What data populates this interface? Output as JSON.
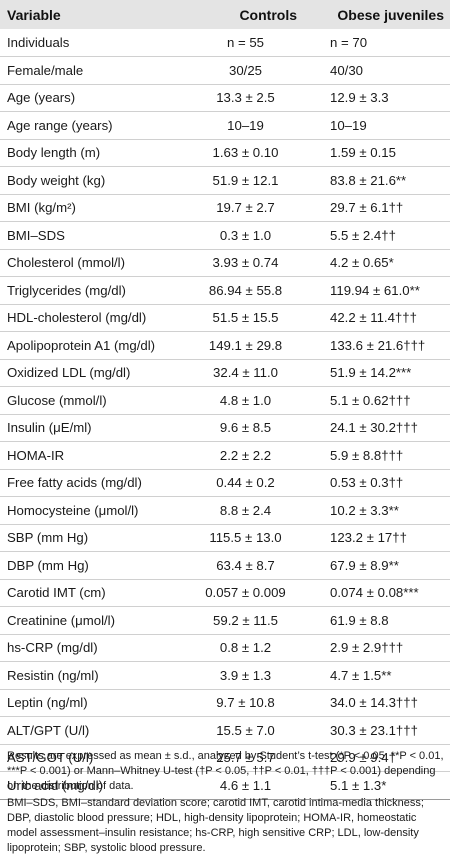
{
  "table": {
    "headers": {
      "variable": "Variable",
      "controls": "Controls",
      "obese": "Obese juveniles"
    },
    "rows": [
      {
        "variable": "Individuals",
        "controls": "n = 55",
        "obese": "n = 70"
      },
      {
        "variable": "Female/male",
        "controls": "30/25",
        "obese": "40/30"
      },
      {
        "variable": "Age (years)",
        "controls": "13.3 ± 2.5",
        "obese": "12.9 ± 3.3"
      },
      {
        "variable": "Age range (years)",
        "controls": "10–19",
        "obese": "10–19"
      },
      {
        "variable": "Body length (m)",
        "controls": "1.63 ± 0.10",
        "obese": "1.59 ± 0.15"
      },
      {
        "variable": "Body weight (kg)",
        "controls": "51.9 ± 12.1",
        "obese": "83.8 ± 21.6**"
      },
      {
        "variable": "BMI (kg/m²)",
        "controls": "19.7 ± 2.7",
        "obese": "29.7 ± 6.1††"
      },
      {
        "variable": "BMI–SDS",
        "controls": "0.3 ± 1.0",
        "obese": "5.5 ± 2.4††"
      },
      {
        "variable": "Cholesterol (mmol/l)",
        "controls": "3.93 ± 0.74",
        "obese": "4.2 ± 0.65*"
      },
      {
        "variable": "Triglycerides (mg/dl)",
        "controls": "86.94 ± 55.8",
        "obese": "119.94 ± 61.0**"
      },
      {
        "variable": "HDL-cholesterol (mg/dl)",
        "controls": "51.5 ± 15.5",
        "obese": "42.2 ± 11.4†††"
      },
      {
        "variable": "Apolipoprotein A1 (mg/dl)",
        "controls": "149.1 ± 29.8",
        "obese": "133.6 ± 21.6†††"
      },
      {
        "variable": "Oxidized LDL (mg/dl)",
        "controls": "32.4 ± 11.0",
        "obese": "51.9 ± 14.2***"
      },
      {
        "variable": "Glucose (mmol/l)",
        "controls": "4.8 ± 1.0",
        "obese": "5.1 ± 0.62†††"
      },
      {
        "variable": "Insulin (μE/ml)",
        "controls": "9.6 ± 8.5",
        "obese": "24.1 ± 30.2†††"
      },
      {
        "variable": "HOMA-IR",
        "controls": "2.2 ± 2.2",
        "obese": "5.9 ± 8.8†††"
      },
      {
        "variable": "Free fatty acids (mg/dl)",
        "controls": "0.44 ± 0.2",
        "obese": "0.53 ± 0.3††"
      },
      {
        "variable": "Homocysteine (μmol/l)",
        "controls": "8.8 ± 2.4",
        "obese": "10.2 ± 3.3**"
      },
      {
        "variable": "SBP (mm Hg)",
        "controls": "115.5 ± 13.0",
        "obese": "123.2 ± 17††"
      },
      {
        "variable": "DBP (mm Hg)",
        "controls": "63.4 ± 8.7",
        "obese": "67.9 ± 8.9**"
      },
      {
        "variable": "Carotid IMT (cm)",
        "controls": "0.057 ± 0.009",
        "obese": "0.074 ± 0.08***"
      },
      {
        "variable": "Creatinine (μmol/l)",
        "controls": "59.2 ± 11.5",
        "obese": "61.9 ± 8.8"
      },
      {
        "variable": "hs-CRP (mg/dl)",
        "controls": "0.8 ± 1.2",
        "obese": "2.9 ± 2.9†††"
      },
      {
        "variable": "Resistin (ng/ml)",
        "controls": "3.9 ± 1.3",
        "obese": "4.7 ± 1.5**"
      },
      {
        "variable": "Leptin (ng/ml)",
        "controls": "9.7 ± 10.8",
        "obese": "34.0 ± 14.3†††"
      },
      {
        "variable": "ALT/GPT (U/l)",
        "controls": "15.5 ± 7.0",
        "obese": "30.3 ± 23.1†††"
      },
      {
        "variable": "AST/GOT (U/l)",
        "controls": "25.7 ± 5.7",
        "obese": "29.9 ± 9.4†"
      },
      {
        "variable": "Uric acid (mg/dl)",
        "controls": "4.6 ± 1.1",
        "obese": "5.1 ± 1.3*"
      }
    ]
  },
  "notes": {
    "statistics": "Results are expressed as mean ± s.d., analyzed by Student’s t-test (*P < 0.05, **P < 0.01, ***P < 0.001) or Mann–Whitney U-test (†P < 0.05, ††P < 0.01, †††P < 0.001) depending on the distribution of data.",
    "abbreviations": "BMI–SDS, BMI–standard deviation score; carotid IMT, carotid intima-media thickness; DBP, diastolic blood pressure; HDL, high-density lipoprotein; HOMA-IR, homeostatic model assessment–insulin resistance; hs-CRP, high sensitive CRP; LDL, low-density lipoprotein; SBP, systolic blood pressure."
  }
}
